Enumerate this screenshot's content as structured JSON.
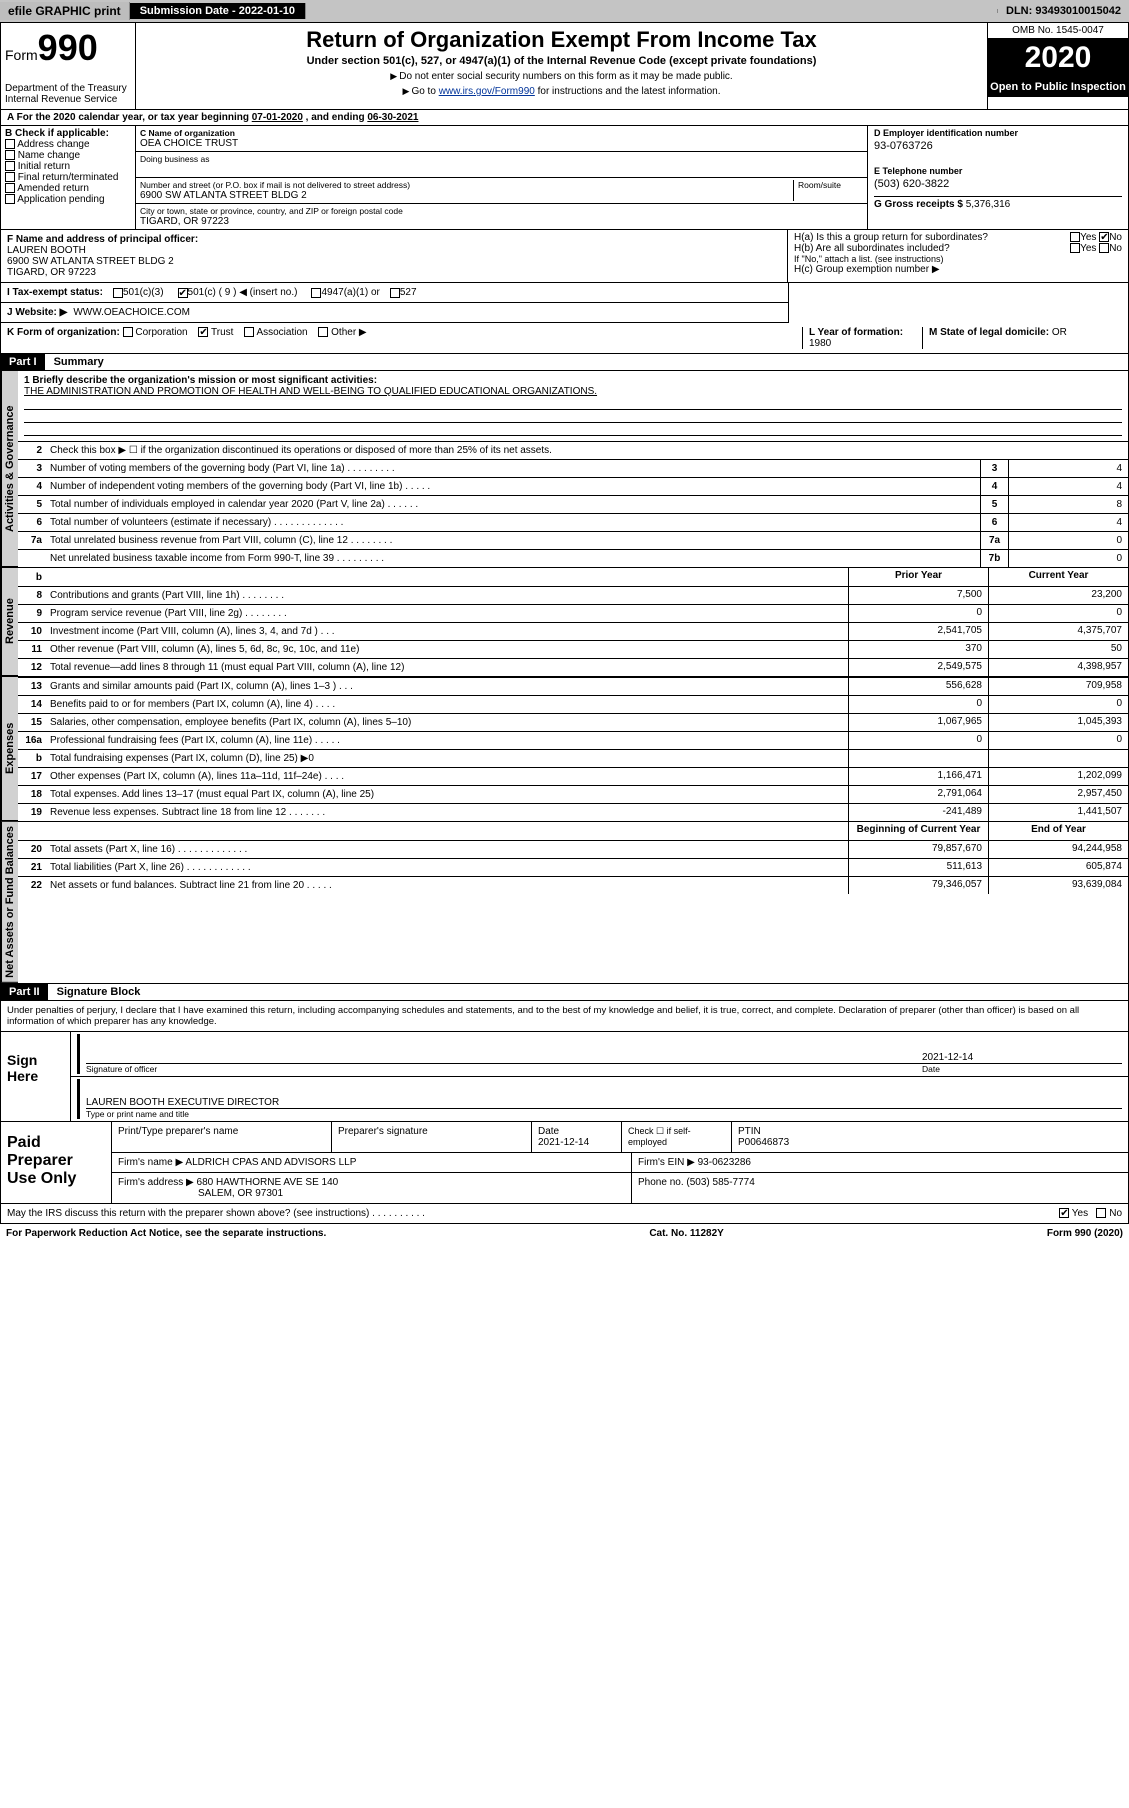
{
  "topbar": {
    "efile": "efile GRAPHIC print",
    "submission_label": "Submission Date - 2022-01-10",
    "dln": "DLN: 93493010015042"
  },
  "header": {
    "form_prefix": "Form",
    "form_number": "990",
    "dept": "Department of the Treasury",
    "irs": "Internal Revenue Service",
    "title": "Return of Organization Exempt From Income Tax",
    "subtitle_lines": [
      "Under section 501(c), 527, or 4947(a)(1) of the Internal Revenue Code (except private foundations)",
      "Do not enter social security numbers on this form as it may be made public.",
      "Go to www.irs.gov/Form990 for instructions and the latest information."
    ],
    "link_text": "www.irs.gov/Form990",
    "omb": "OMB No. 1545-0047",
    "year": "2020",
    "inspect": "Open to Public Inspection"
  },
  "period": {
    "prefix": "A For the 2020 calendar year, or tax year beginning ",
    "begin": "07-01-2020",
    "mid": " , and ending ",
    "end": "06-30-2021"
  },
  "box_b": {
    "label": "B Check if applicable:",
    "items": [
      "Address change",
      "Name change",
      "Initial return",
      "Final return/terminated",
      "Amended return",
      "Application pending"
    ]
  },
  "box_c": {
    "name_label": "C Name of organization",
    "name": "OEA CHOICE TRUST",
    "dba_label": "Doing business as",
    "addr_label": "Number and street (or P.O. box if mail is not delivered to street address)",
    "room_label": "Room/suite",
    "addr": "6900 SW ATLANTA STREET BLDG 2",
    "city_label": "City or town, state or province, country, and ZIP or foreign postal code",
    "city": "TIGARD, OR  97223"
  },
  "box_d": {
    "label": "D Employer identification number",
    "val": "93-0763726"
  },
  "box_e": {
    "label": "E Telephone number",
    "val": "(503) 620-3822"
  },
  "box_g": {
    "label": "G Gross receipts $",
    "val": "5,376,316"
  },
  "box_f": {
    "label": "F Name and address of principal officer:",
    "name": "LAUREN BOOTH",
    "addr": "6900 SW ATLANTA STREET BLDG 2",
    "city": "TIGARD, OR  97223"
  },
  "box_h": {
    "a_label": "H(a)  Is this a group return for subordinates?",
    "a_no_checked": true,
    "b_label": "H(b)  Are all subordinates included?",
    "b_note": "If \"No,\" attach a list. (see instructions)",
    "c_label": "H(c)  Group exemption number ▶"
  },
  "box_i": {
    "label": "I  Tax-exempt status:",
    "c3": "501(c)(3)",
    "c_other": "501(c) ( 9 ) ◀ (insert no.)",
    "c_other_checked": true,
    "a4947": "4947(a)(1) or",
    "c527": "527"
  },
  "box_j": {
    "label": "J  Website: ▶",
    "val": "WWW.OEACHOICE.COM"
  },
  "box_k": {
    "label": "K Form of organization:",
    "corp": "Corporation",
    "trust": "Trust",
    "trust_checked": true,
    "assoc": "Association",
    "other": "Other ▶"
  },
  "box_l": {
    "label": "L Year of formation:",
    "val": "1980"
  },
  "box_m": {
    "label": "M State of legal domicile:",
    "val": "OR"
  },
  "part1": {
    "hdr": "Part I",
    "title": "Summary"
  },
  "mission": {
    "label": "1  Briefly describe the organization's mission or most significant activities:",
    "text": "THE ADMINISTRATION AND PROMOTION OF HEALTH AND WELL-BEING TO QUALIFIED EDUCATIONAL ORGANIZATIONS."
  },
  "lines_gov": [
    {
      "n": "2",
      "d": "Check this box ▶ ☐  if the organization discontinued its operations or disposed of more than 25% of its net assets."
    },
    {
      "n": "3",
      "d": "Number of voting members of the governing body (Part VI, line 1a)  .    .    .    .    .    .    .    .    .",
      "nc": "3",
      "v": "4"
    },
    {
      "n": "4",
      "d": "Number of independent voting members of the governing body (Part VI, line 1b)  .    .    .    .    .",
      "nc": "4",
      "v": "4"
    },
    {
      "n": "5",
      "d": "Total number of individuals employed in calendar year 2020 (Part V, line 2a)  .    .    .    .    .    .",
      "nc": "5",
      "v": "8"
    },
    {
      "n": "6",
      "d": "Total number of volunteers (estimate if necessary)  .    .    .    .    .    .    .    .    .    .    .    .    .",
      "nc": "6",
      "v": "4"
    },
    {
      "n": "7a",
      "d": "Total unrelated business revenue from Part VIII, column (C), line 12  .    .    .    .    .    .    .    .",
      "nc": "7a",
      "v": "0"
    },
    {
      "n": "",
      "d": "Net unrelated business taxable income from Form 990-T, line 39  .    .    .    .    .    .    .    .    .",
      "nc": "7b",
      "v": "0"
    }
  ],
  "rev_hdr": {
    "b": "b",
    "c1": "Prior Year",
    "c2": "Current Year"
  },
  "lines_rev": [
    {
      "n": "8",
      "d": "Contributions and grants (Part VIII, line 1h)  .    .    .    .    .    .    .    .",
      "c1": "7,500",
      "c2": "23,200"
    },
    {
      "n": "9",
      "d": "Program service revenue (Part VIII, line 2g)  .    .    .    .    .    .    .    .",
      "c1": "0",
      "c2": "0"
    },
    {
      "n": "10",
      "d": "Investment income (Part VIII, column (A), lines 3, 4, and 7d )  .    .    .",
      "c1": "2,541,705",
      "c2": "4,375,707"
    },
    {
      "n": "11",
      "d": "Other revenue (Part VIII, column (A), lines 5, 6d, 8c, 9c, 10c, and 11e)",
      "c1": "370",
      "c2": "50"
    },
    {
      "n": "12",
      "d": "Total revenue—add lines 8 through 11 (must equal Part VIII, column (A), line 12)",
      "c1": "2,549,575",
      "c2": "4,398,957"
    }
  ],
  "lines_exp": [
    {
      "n": "13",
      "d": "Grants and similar amounts paid (Part IX, column (A), lines 1–3 )  .    .    .",
      "c1": "556,628",
      "c2": "709,958"
    },
    {
      "n": "14",
      "d": "Benefits paid to or for members (Part IX, column (A), line 4)  .    .    .    .",
      "c1": "0",
      "c2": "0"
    },
    {
      "n": "15",
      "d": "Salaries, other compensation, employee benefits (Part IX, column (A), lines 5–10)",
      "c1": "1,067,965",
      "c2": "1,045,393"
    },
    {
      "n": "16a",
      "d": "Professional fundraising fees (Part IX, column (A), line 11e)  .    .    .    .    .",
      "c1": "0",
      "c2": "0"
    },
    {
      "n": "b",
      "d": "Total fundraising expenses (Part IX, column (D), line 25) ▶0",
      "c1": "",
      "c2": "",
      "grey": true
    },
    {
      "n": "17",
      "d": "Other expenses (Part IX, column (A), lines 11a–11d, 11f–24e)  .    .    .    .",
      "c1": "1,166,471",
      "c2": "1,202,099"
    },
    {
      "n": "18",
      "d": "Total expenses. Add lines 13–17 (must equal Part IX, column (A), line 25)",
      "c1": "2,791,064",
      "c2": "2,957,450"
    },
    {
      "n": "19",
      "d": "Revenue less expenses. Subtract line 18 from line 12  .    .    .    .    .    .    .",
      "c1": "-241,489",
      "c2": "1,441,507"
    }
  ],
  "net_hdr": {
    "c1": "Beginning of Current Year",
    "c2": "End of Year"
  },
  "lines_net": [
    {
      "n": "20",
      "d": "Total assets (Part X, line 16)  .    .    .    .    .    .    .    .    .    .    .    .    .",
      "c1": "79,857,670",
      "c2": "94,244,958"
    },
    {
      "n": "21",
      "d": "Total liabilities (Part X, line 26)  .    .    .    .    .    .    .    .    .    .    .    .",
      "c1": "511,613",
      "c2": "605,874"
    },
    {
      "n": "22",
      "d": "Net assets or fund balances. Subtract line 21 from line 20  .    .    .    .    .",
      "c1": "79,346,057",
      "c2": "93,639,084"
    }
  ],
  "part2": {
    "hdr": "Part II",
    "title": "Signature Block"
  },
  "penalty": "Under penalties of perjury, I declare that I have examined this return, including accompanying schedules and statements, and to the best of my knowledge and belief, it is true, correct, and complete. Declaration of preparer (other than officer) is based on all information of which preparer has any knowledge.",
  "sign": {
    "here": "Sign Here",
    "sig_label": "Signature of officer",
    "date_label": "Date",
    "date": "2021-12-14",
    "name": "LAUREN BOOTH  EXECUTIVE DIRECTOR",
    "name_label": "Type or print name and title"
  },
  "paid": {
    "title": "Paid Preparer Use Only",
    "h1": "Print/Type preparer's name",
    "h2": "Preparer's signature",
    "h3": "Date",
    "h3v": "2021-12-14",
    "h4": "Check ☐ if self-employed",
    "h5": "PTIN",
    "h5v": "P00646873",
    "firm_label": "Firm's name    ▶",
    "firm": "ALDRICH CPAS AND ADVISORS LLP",
    "ein_label": "Firm's EIN ▶",
    "ein": "93-0623286",
    "addr_label": "Firm's address ▶",
    "addr": "680 HAWTHORNE AVE SE 140",
    "city": "SALEM, OR  97301",
    "phone_label": "Phone no.",
    "phone": "(503) 585-7774"
  },
  "footer": {
    "q": "May the IRS discuss this return with the preparer shown above? (see instructions)  .    .    .    .    .    .    .    .    .    .",
    "yes_checked": true,
    "paperwork": "For Paperwork Reduction Act Notice, see the separate instructions.",
    "cat": "Cat. No. 11282Y",
    "form": "Form 990 (2020)"
  },
  "vtabs": {
    "gov": "Activities & Governance",
    "rev": "Revenue",
    "exp": "Expenses",
    "net": "Net Assets or Fund Balances"
  }
}
